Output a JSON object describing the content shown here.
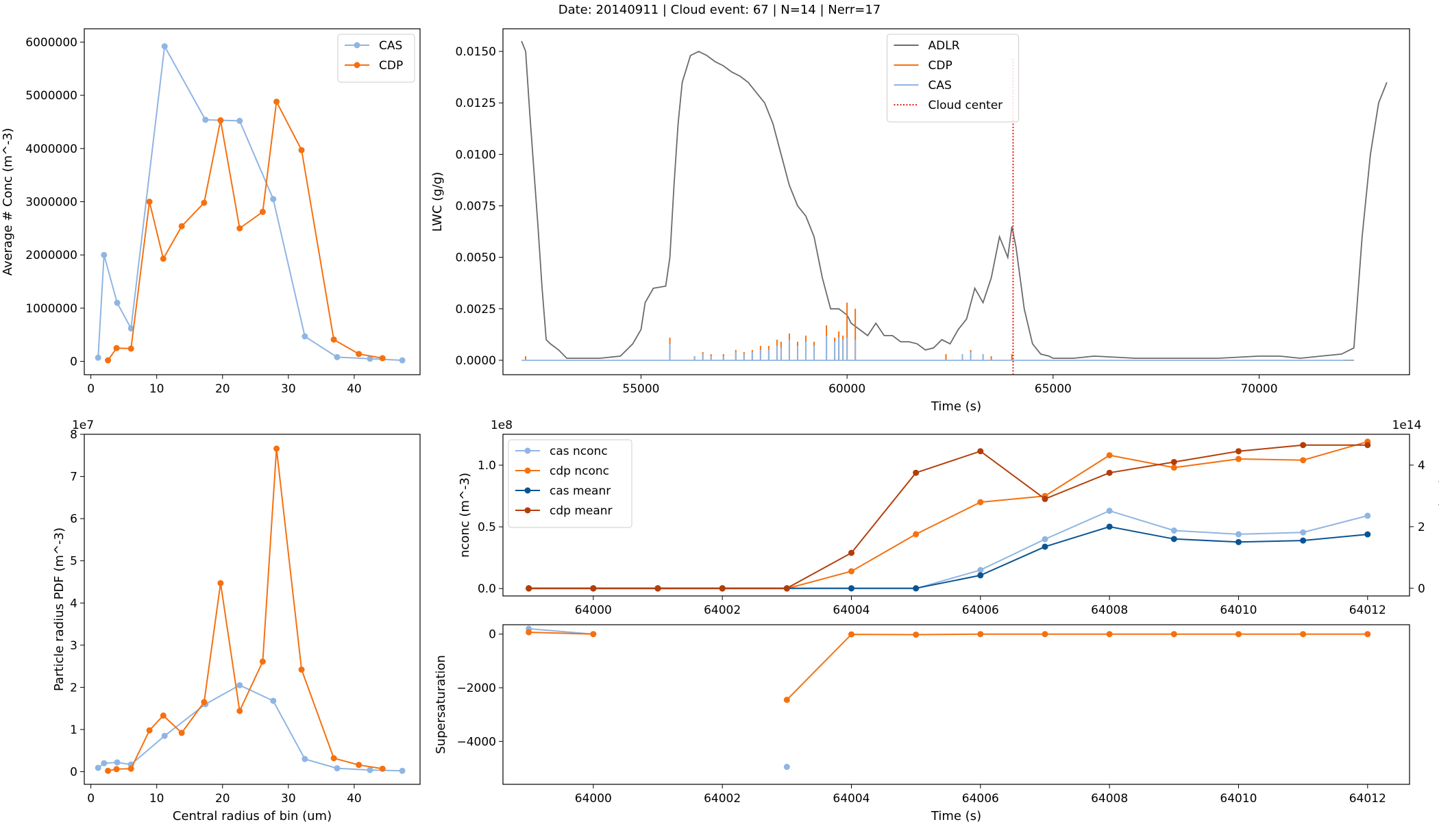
{
  "suptitle": "Date: 20140911 | Cloud event: 67 | N=14 | Nerr=17",
  "colors": {
    "cas": "#8fb5e3",
    "cdp": "#f5700f",
    "adlr": "#6a6a6a",
    "cas_dark": "#0a5492",
    "cdp_dark": "#b33d08",
    "center": "#e8191b"
  },
  "chart_data": [
    {
      "id": "conc",
      "type": "line",
      "xlabel": "",
      "ylabel": "Average # Conc (m^-3)",
      "xlim": [
        -1,
        50
      ],
      "ylim": [
        -250000,
        6250000
      ],
      "xticks": [
        0,
        10,
        20,
        30,
        40
      ],
      "yticks": [
        0,
        1000000,
        2000000,
        3000000,
        4000000,
        5000000,
        6000000
      ],
      "ytick_labels": [
        "0",
        "1000000",
        "2000000",
        "3000000",
        "4000000",
        "5000000",
        "6000000"
      ],
      "legend": "top-right",
      "series": [
        {
          "name": "CAS",
          "color": "cas",
          "x": [
            1.1,
            2.0,
            4.0,
            6.1,
            11.2,
            17.4,
            22.6,
            27.7,
            32.5,
            37.4,
            42.4,
            47.3
          ],
          "y": [
            70000,
            2000000,
            1100000,
            620000,
            5920000,
            4540000,
            4520000,
            3050000,
            470000,
            80000,
            50000,
            20000
          ]
        },
        {
          "name": "CDP",
          "color": "cdp",
          "x": [
            2.6,
            3.9,
            6.1,
            8.9,
            11.0,
            13.8,
            17.2,
            19.7,
            22.6,
            26.1,
            28.2,
            32.0,
            36.9,
            40.7,
            44.3
          ],
          "y": [
            20000,
            250000,
            240000,
            3000000,
            1930000,
            2540000,
            2980000,
            4530000,
            2500000,
            2810000,
            4880000,
            3970000,
            410000,
            140000,
            60000
          ]
        }
      ]
    },
    {
      "id": "lwc",
      "type": "line",
      "xlabel": "Time (s)",
      "ylabel": "LWC (g/g)",
      "xlim": [
        51650,
        73650
      ],
      "ylim": [
        -0.0007,
        0.0161
      ],
      "xticks": [
        55000,
        60000,
        65000,
        70000
      ],
      "yticks": [
        0,
        0.0025,
        0.005,
        0.0075,
        0.01,
        0.0125,
        0.015
      ],
      "ytick_labels": [
        "0.0000",
        "0.0025",
        "0.0050",
        "0.0075",
        "0.0100",
        "0.0125",
        "0.0150"
      ],
      "legend": "top-center",
      "series": [
        {
          "name": "ADLR",
          "color": "adlr",
          "x": [
            52100,
            52200,
            52300,
            52500,
            52600,
            52700,
            52800,
            53000,
            53200,
            53500,
            54000,
            54500,
            54800,
            55000,
            55100,
            55300,
            55600,
            55700,
            55800,
            55900,
            56000,
            56200,
            56400,
            56600,
            56800,
            57000,
            57200,
            57400,
            57600,
            57800,
            58000,
            58200,
            58400,
            58600,
            58800,
            59000,
            59200,
            59400,
            59600,
            59800,
            60000,
            60100,
            60300,
            60500,
            60700,
            60900,
            61100,
            61300,
            61500,
            61700,
            61900,
            62100,
            62300,
            62500,
            62700,
            62900,
            63100,
            63300,
            63500,
            63700,
            63900,
            64000,
            64100,
            64300,
            64500,
            64700,
            64900,
            65000,
            65200,
            65500,
            66000,
            67000,
            68000,
            69000,
            70000,
            70500,
            71000,
            71500,
            72000,
            72300,
            72500,
            72700,
            72900,
            73000,
            73100
          ],
          "y": [
            0.0155,
            0.015,
            0.012,
            0.0065,
            0.0035,
            0.001,
            0.0008,
            0.0005,
            0.0001,
            0.0001,
            0.0001,
            0.0002,
            0.0008,
            0.0015,
            0.0028,
            0.0035,
            0.0036,
            0.005,
            0.0085,
            0.0115,
            0.0135,
            0.0148,
            0.015,
            0.0148,
            0.0145,
            0.0143,
            0.014,
            0.0138,
            0.0135,
            0.013,
            0.0125,
            0.0115,
            0.01,
            0.0085,
            0.0075,
            0.007,
            0.006,
            0.004,
            0.0025,
            0.0025,
            0.0022,
            0.0018,
            0.0015,
            0.0012,
            0.0018,
            0.0012,
            0.0012,
            0.0009,
            0.0009,
            0.0008,
            0.0005,
            0.0006,
            0.001,
            0.0008,
            0.0015,
            0.002,
            0.0035,
            0.0028,
            0.004,
            0.006,
            0.005,
            0.0065,
            0.0055,
            0.0025,
            0.0008,
            0.0003,
            0.0002,
            0.0001,
            0.0001,
            0.0001,
            0.0002,
            0.0001,
            0.0001,
            0.0001,
            0.0002,
            0.0002,
            0.0001,
            0.0002,
            0.0003,
            0.0006,
            0.006,
            0.01,
            0.0125,
            0.013,
            0.0135
          ]
        },
        {
          "name": "CDP",
          "color": "cdp",
          "spikes_x": [
            52200,
            55700,
            56300,
            56500,
            56700,
            57000,
            57300,
            57500,
            57700,
            57900,
            58100,
            58300,
            58400,
            58600,
            58800,
            59000,
            59200,
            59500,
            59700,
            59800,
            59900,
            60000,
            60200,
            62400,
            62800,
            63000,
            63300,
            63500,
            64000
          ],
          "spikes_y": [
            0.0002,
            0.0011,
            0.0002,
            0.0004,
            0.0003,
            0.0003,
            0.0005,
            0.0004,
            0.0005,
            0.0007,
            0.0007,
            0.001,
            0.0009,
            0.0013,
            0.0009,
            0.0012,
            0.0009,
            0.0017,
            0.0011,
            0.0014,
            0.0012,
            0.0028,
            0.0025,
            0.0003,
            0.0003,
            0.0005,
            0.0003,
            0.0002,
            0.0003
          ]
        },
        {
          "name": "CAS",
          "color": "cas",
          "x": [
            52100,
            72300
          ],
          "y": [
            0,
            0
          ],
          "spikes_x": [
            55700,
            56300,
            56500,
            56700,
            57000,
            57300,
            57500,
            57700,
            57900,
            58100,
            58300,
            58400,
            58600,
            58800,
            59000,
            59200,
            59500,
            59700,
            59800,
            59900,
            60000,
            60200,
            62800,
            63000,
            63300
          ],
          "spikes_y": [
            0.0008,
            0.0002,
            0.0003,
            0.0002,
            0.0002,
            0.0004,
            0.0003,
            0.0004,
            0.0005,
            0.0005,
            0.0007,
            0.0006,
            0.001,
            0.0007,
            0.0009,
            0.0007,
            0.0012,
            0.0009,
            0.0011,
            0.001,
            0.0011,
            0.001,
            0.0003,
            0.0004,
            0.0003
          ]
        },
        {
          "name": "Cloud center",
          "color": "center",
          "x": [
            64030,
            64030
          ],
          "y": [
            -0.0007,
            0.0161
          ]
        }
      ]
    },
    {
      "id": "pdf",
      "type": "line",
      "xlabel": "Central radius of bin (um)",
      "ylabel": "Particle radius PDF (m^-3)",
      "offset_label": "1e7",
      "xlim": [
        -1,
        50
      ],
      "ylim": [
        -3000000,
        80000000
      ],
      "xticks": [
        0,
        10,
        20,
        30,
        40
      ],
      "yticks": [
        0,
        10000000,
        20000000,
        30000000,
        40000000,
        50000000,
        60000000,
        70000000,
        80000000
      ],
      "ytick_labels": [
        "0",
        "1",
        "2",
        "3",
        "4",
        "5",
        "6",
        "7",
        "8"
      ],
      "series": [
        {
          "name": "CAS",
          "color": "cas",
          "x": [
            1.1,
            2.0,
            4.0,
            6.1,
            11.2,
            17.4,
            22.6,
            27.7,
            32.5,
            37.4,
            42.4,
            47.3
          ],
          "y": [
            900000,
            2000000,
            2200000,
            1700000,
            8500000,
            16000000,
            20500000,
            16800000,
            3000000,
            800000,
            400000,
            200000
          ]
        },
        {
          "name": "CDP",
          "color": "cdp",
          "x": [
            2.6,
            3.9,
            6.1,
            8.9,
            11.0,
            13.8,
            17.2,
            19.7,
            22.6,
            26.1,
            28.2,
            32.0,
            36.9,
            40.7,
            44.3
          ],
          "y": [
            200000,
            600000,
            700000,
            9800000,
            13300000,
            9200000,
            16500000,
            44700000,
            14400000,
            26100000,
            76600000,
            24200000,
            3200000,
            1600000,
            700000
          ]
        }
      ]
    },
    {
      "id": "nconc",
      "type": "line",
      "xlabel": "",
      "ylabel": "nconc (m^-3)",
      "ylabel_right": "meanr (um)",
      "offset_label": "1e8",
      "offset_label_right": "1e14",
      "xlim": [
        63998.6,
        64012.65
      ],
      "ylim": [
        -6000000,
        125000000
      ],
      "ylim_right": [
        -25000000000000.0,
        500000000000000.0
      ],
      "xticks": [
        64000,
        64002,
        64004,
        64006,
        64008,
        64010,
        64012
      ],
      "yticks": [
        0,
        50000000,
        100000000
      ],
      "ytick_labels": [
        "0.0",
        "0.5",
        "1.0"
      ],
      "yticks_right": [
        0,
        200000000000000.0,
        400000000000000.0
      ],
      "ytick_labels_right": [
        "0",
        "2",
        "4"
      ],
      "legend": "top-left",
      "series": [
        {
          "name": "cas nconc",
          "color": "cas",
          "axis": "left",
          "x": [
            63999,
            64000,
            64001,
            64002,
            64003,
            64004,
            64005,
            64006,
            64007,
            64008,
            64009,
            64010,
            64011,
            64012
          ],
          "y": [
            0,
            0,
            0,
            0,
            0,
            0,
            0,
            15000000,
            40000000,
            63000000,
            47000000,
            44000000,
            45500000,
            59000000
          ]
        },
        {
          "name": "cdp nconc",
          "color": "cdp",
          "axis": "left",
          "x": [
            63999,
            64000,
            64001,
            64002,
            64003,
            64004,
            64005,
            64006,
            64007,
            64008,
            64009,
            64010,
            64011,
            64012
          ],
          "y": [
            0,
            0,
            0,
            0,
            0,
            14000000,
            44000000,
            70000000,
            75000000,
            108000000,
            98000000,
            105000000,
            104000000,
            119000000
          ]
        },
        {
          "name": "cas meanr",
          "color": "cas_dark",
          "axis": "right",
          "x": [
            63999,
            64000,
            64001,
            64002,
            64003,
            64004,
            64005,
            64006,
            64007,
            64008,
            64009,
            64010,
            64011,
            64012
          ],
          "y": [
            0,
            0,
            0,
            0,
            0,
            0,
            0,
            42000000000000.0,
            135000000000000.0,
            200000000000000.0,
            160000000000000.0,
            150000000000000.0,
            155000000000000.0,
            175000000000000.0
          ]
        },
        {
          "name": "cdp meanr",
          "color": "cdp_dark",
          "axis": "right",
          "x": [
            63999,
            64000,
            64001,
            64002,
            64003,
            64004,
            64005,
            64006,
            64007,
            64008,
            64009,
            64010,
            64011,
            64012
          ],
          "y": [
            0,
            0,
            0,
            0,
            0,
            115000000000000.0,
            375000000000000.0,
            445000000000000.0,
            290000000000000.0,
            375000000000000.0,
            410000000000000.0,
            445000000000000.0,
            465000000000000.0,
            465000000000000.0
          ]
        }
      ]
    },
    {
      "id": "ss",
      "type": "line",
      "xlabel": "Time (s)",
      "ylabel": "Supersaturation",
      "xlim": [
        63998.6,
        64012.65
      ],
      "ylim": [
        -5600,
        350
      ],
      "xticks": [
        64000,
        64002,
        64004,
        64006,
        64008,
        64010,
        64012
      ],
      "yticks": [
        0,
        -2000,
        -4000
      ],
      "ytick_labels": [
        "0",
        "−2000",
        "−4000"
      ],
      "series": [
        {
          "name": "cas",
          "color": "cas",
          "segments": [
            {
              "x": [
                63999,
                64000
              ],
              "y": [
                200,
                0
              ]
            }
          ],
          "points_x": [
            63999,
            64000,
            64003
          ],
          "points_y": [
            200,
            0,
            -4950
          ]
        },
        {
          "name": "cdp",
          "color": "cdp",
          "segments": [
            {
              "x": [
                63999,
                64000
              ],
              "y": [
                70,
                0
              ]
            },
            {
              "x": [
                64003,
                64004,
                64005,
                64006,
                64007,
                64008,
                64009,
                64010,
                64011,
                64012
              ],
              "y": [
                -2450,
                -10,
                -20,
                0,
                0,
                0,
                0,
                0,
                0,
                0
              ]
            }
          ],
          "points_x": [
            63999,
            64000,
            64003,
            64004,
            64005,
            64006,
            64007,
            64008,
            64009,
            64010,
            64011,
            64012
          ],
          "points_y": [
            70,
            0,
            -2450,
            -10,
            -20,
            0,
            0,
            0,
            0,
            0,
            0,
            0
          ]
        }
      ]
    }
  ]
}
